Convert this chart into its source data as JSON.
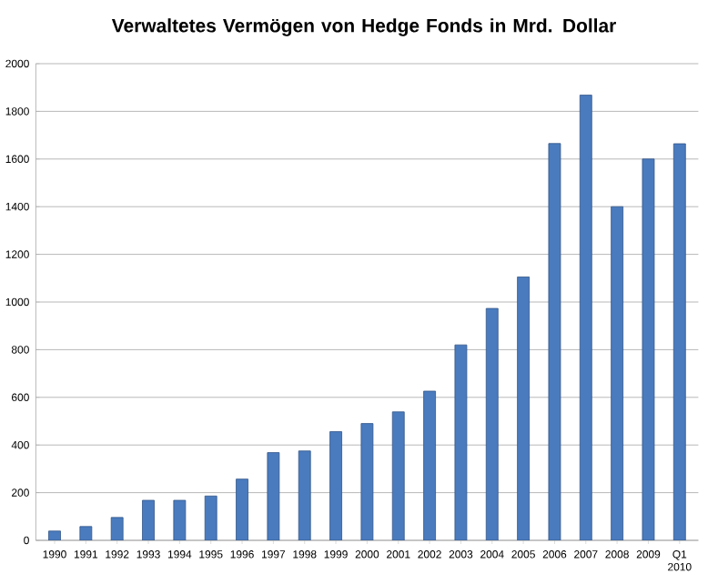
{
  "chart_data": {
    "type": "bar",
    "title": "Verwaltetes Vermögen von Hedge Fonds in Mrd. Dollar",
    "categories": [
      "1990",
      "1991",
      "1992",
      "1993",
      "1994",
      "1995",
      "1996",
      "1997",
      "1998",
      "1999",
      "2000",
      "2001",
      "2002",
      "2003",
      "2004",
      "2005",
      "2006",
      "2007",
      "2008",
      "2009",
      "Q1 2010"
    ],
    "values": [
      39,
      58,
      96,
      168,
      168,
      186,
      257,
      368,
      375,
      456,
      490,
      539,
      626,
      820,
      973,
      1105,
      1665,
      1868,
      1400,
      1600,
      1664
    ],
    "color": "#4a7bbf",
    "ylim": [
      0,
      2000
    ],
    "yticks": [
      0,
      200,
      400,
      600,
      800,
      1000,
      1200,
      1400,
      1600,
      1800,
      2000
    ],
    "grid": "y"
  }
}
